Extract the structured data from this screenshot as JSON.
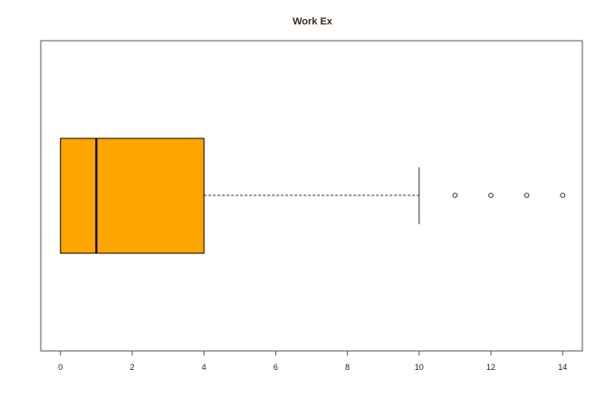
{
  "chart_data": {
    "type": "boxplot",
    "orientation": "horizontal",
    "title": "Work Ex",
    "xlabel": "",
    "ylabel": "",
    "xlim": [
      -0.55,
      14.55
    ],
    "ticks": [
      0,
      2,
      4,
      6,
      8,
      10,
      12,
      14
    ],
    "tick_labels": [
      "0",
      "2",
      "4",
      "6",
      "8",
      "10",
      "12",
      "14"
    ],
    "grid": false,
    "legend": "none",
    "box": {
      "min": 0,
      "q1": 0,
      "median": 1,
      "q3": 4,
      "whisker_low": 0,
      "whisker_high": 10,
      "outliers": [
        11,
        12,
        13,
        14
      ]
    },
    "colors": {
      "box_fill": "#FFA500",
      "box_stroke": "#000000",
      "median": "#000000",
      "whisker": "#333333",
      "frame": "#555555",
      "outlier": "#333333"
    }
  }
}
